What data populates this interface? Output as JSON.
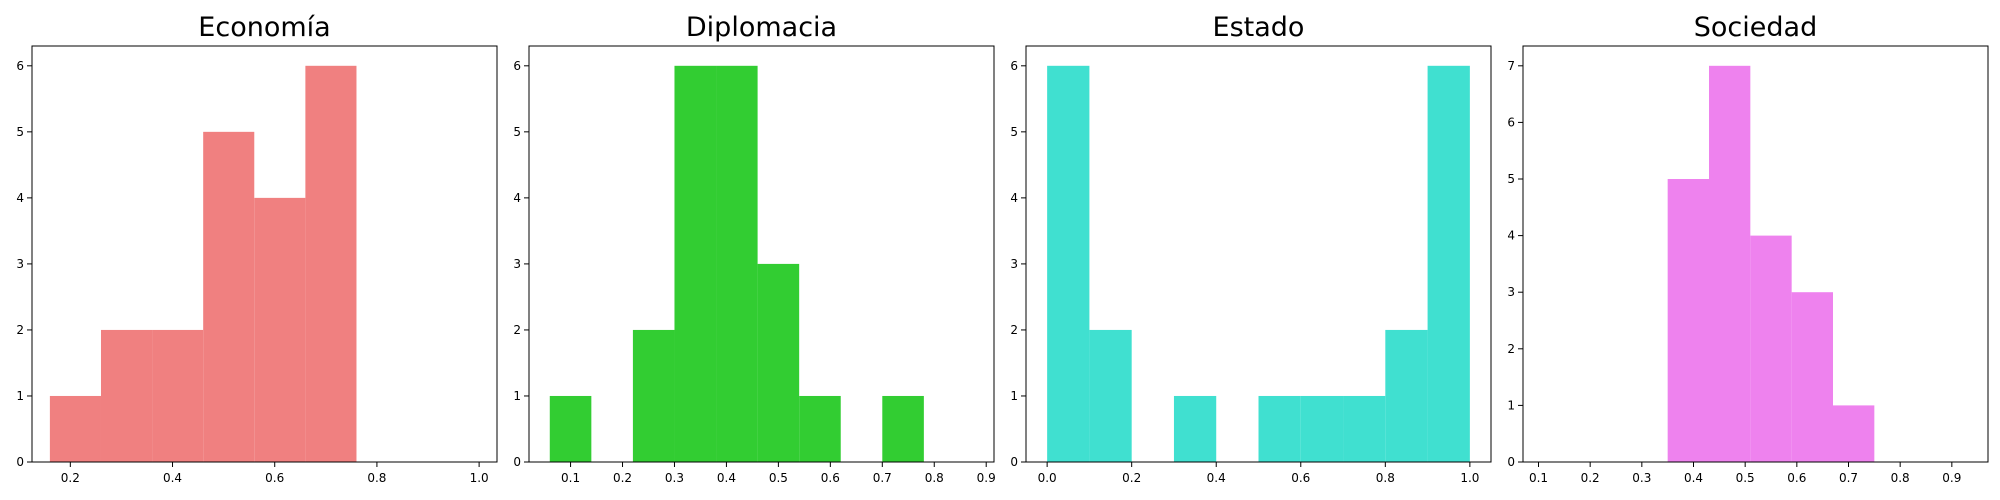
{
  "chart_data": [
    {
      "type": "histogram",
      "title": "Economía",
      "color": "#f08080",
      "xlim": [
        0.125,
        1.035
      ],
      "ylim": [
        0,
        6.3
      ],
      "xticks": [
        "0.2",
        "0.4",
        "0.6",
        "0.8",
        "1.0"
      ],
      "xtick_values": [
        0.2,
        0.4,
        0.6,
        0.8,
        1.0
      ],
      "yticks": [
        "0",
        "1",
        "2",
        "3",
        "4",
        "5",
        "6"
      ],
      "ytick_values": [
        0,
        1,
        2,
        3,
        4,
        5,
        6
      ],
      "bins": [
        {
          "x0": 0.16,
          "x1": 0.26,
          "count": 1
        },
        {
          "x0": 0.26,
          "x1": 0.36,
          "count": 2
        },
        {
          "x0": 0.36,
          "x1": 0.46,
          "count": 2
        },
        {
          "x0": 0.46,
          "x1": 0.56,
          "count": 5
        },
        {
          "x0": 0.56,
          "x1": 0.66,
          "count": 4
        },
        {
          "x0": 0.66,
          "x1": 0.76,
          "count": 6
        }
      ]
    },
    {
      "type": "histogram",
      "title": "Diplomacia",
      "color": "#32cd32",
      "xlim": [
        0.02,
        0.915
      ],
      "ylim": [
        0,
        6.3
      ],
      "xticks": [
        "0.1",
        "0.2",
        "0.3",
        "0.4",
        "0.5",
        "0.6",
        "0.7",
        "0.8",
        "0.9"
      ],
      "xtick_values": [
        0.1,
        0.2,
        0.3,
        0.4,
        0.5,
        0.6,
        0.7,
        0.8,
        0.9
      ],
      "yticks": [
        "0",
        "1",
        "2",
        "3",
        "4",
        "5",
        "6"
      ],
      "ytick_values": [
        0,
        1,
        2,
        3,
        4,
        5,
        6
      ],
      "bins": [
        {
          "x0": 0.06,
          "x1": 0.14,
          "count": 1
        },
        {
          "x0": 0.22,
          "x1": 0.3,
          "count": 2
        },
        {
          "x0": 0.3,
          "x1": 0.38,
          "count": 6
        },
        {
          "x0": 0.38,
          "x1": 0.46,
          "count": 6
        },
        {
          "x0": 0.46,
          "x1": 0.54,
          "count": 3
        },
        {
          "x0": 0.54,
          "x1": 0.62,
          "count": 1
        },
        {
          "x0": 0.7,
          "x1": 0.78,
          "count": 1
        }
      ]
    },
    {
      "type": "histogram",
      "title": "Estado",
      "color": "#40e0d0",
      "xlim": [
        -0.05,
        1.05
      ],
      "ylim": [
        0,
        6.3
      ],
      "xticks": [
        "0.0",
        "0.2",
        "0.4",
        "0.6",
        "0.8",
        "1.0"
      ],
      "xtick_values": [
        0.0,
        0.2,
        0.4,
        0.6,
        0.8,
        1.0
      ],
      "yticks": [
        "0",
        "1",
        "2",
        "3",
        "4",
        "5",
        "6"
      ],
      "ytick_values": [
        0,
        1,
        2,
        3,
        4,
        5,
        6
      ],
      "bins": [
        {
          "x0": 0.0,
          "x1": 0.1,
          "count": 6
        },
        {
          "x0": 0.1,
          "x1": 0.2,
          "count": 2
        },
        {
          "x0": 0.3,
          "x1": 0.4,
          "count": 1
        },
        {
          "x0": 0.5,
          "x1": 0.6,
          "count": 1
        },
        {
          "x0": 0.6,
          "x1": 0.7,
          "count": 1
        },
        {
          "x0": 0.7,
          "x1": 0.8,
          "count": 1
        },
        {
          "x0": 0.8,
          "x1": 0.9,
          "count": 2
        },
        {
          "x0": 0.9,
          "x1": 1.0,
          "count": 6
        }
      ]
    },
    {
      "type": "histogram",
      "title": "Sociedad",
      "color": "#ee82ee",
      "xlim": [
        0.07,
        0.97
      ],
      "ylim": [
        0,
        7.35
      ],
      "xticks": [
        "0.1",
        "0.2",
        "0.3",
        "0.4",
        "0.5",
        "0.6",
        "0.7",
        "0.8",
        "0.9"
      ],
      "xtick_values": [
        0.1,
        0.2,
        0.3,
        0.4,
        0.5,
        0.6,
        0.7,
        0.8,
        0.9
      ],
      "yticks": [
        "0",
        "1",
        "2",
        "3",
        "4",
        "5",
        "6",
        "7"
      ],
      "ytick_values": [
        0,
        1,
        2,
        3,
        4,
        5,
        6,
        7
      ],
      "bins": [
        {
          "x0": 0.35,
          "x1": 0.43,
          "count": 5
        },
        {
          "x0": 0.43,
          "x1": 0.51,
          "count": 7
        },
        {
          "x0": 0.51,
          "x1": 0.59,
          "count": 4
        },
        {
          "x0": 0.59,
          "x1": 0.67,
          "count": 3
        },
        {
          "x0": 0.67,
          "x1": 0.75,
          "count": 1
        }
      ]
    }
  ]
}
